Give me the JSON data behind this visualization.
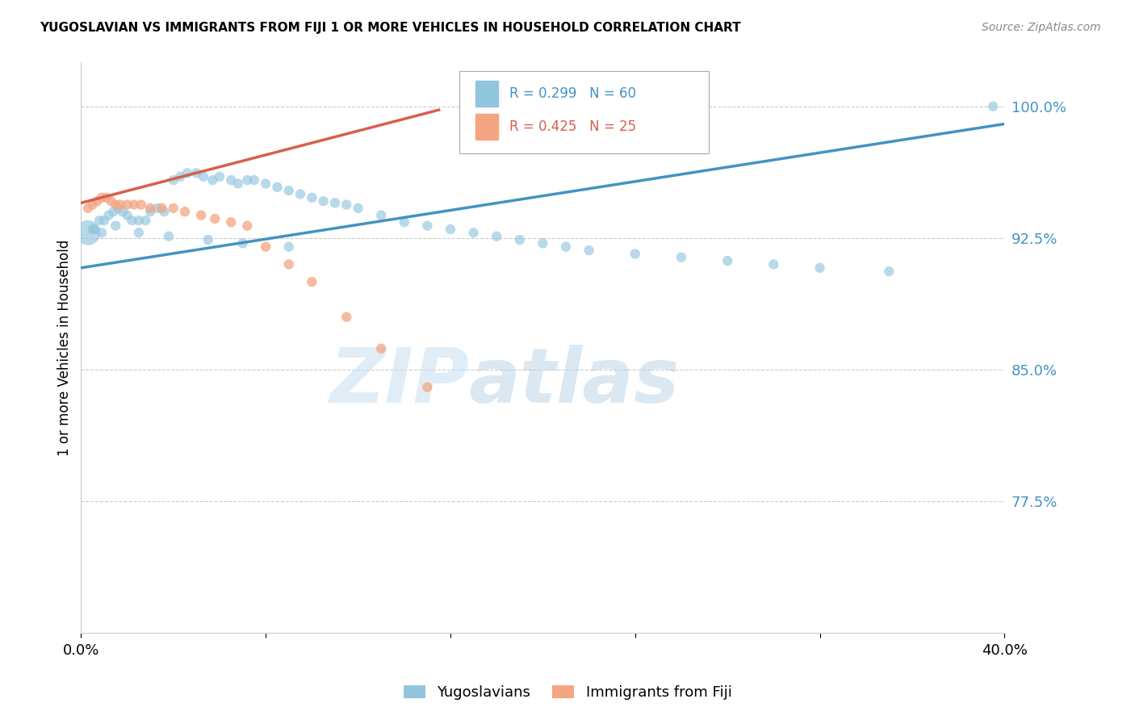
{
  "title": "YUGOSLAVIAN VS IMMIGRANTS FROM FIJI 1 OR MORE VEHICLES IN HOUSEHOLD CORRELATION CHART",
  "source": "Source: ZipAtlas.com",
  "ylabel": "1 or more Vehicles in Household",
  "ytick_labels": [
    "100.0%",
    "92.5%",
    "85.0%",
    "77.5%"
  ],
  "ytick_values": [
    1.0,
    0.925,
    0.85,
    0.775
  ],
  "xlim": [
    0.0,
    0.4
  ],
  "ylim": [
    0.7,
    1.025
  ],
  "blue_R": 0.299,
  "blue_N": 60,
  "pink_R": 0.425,
  "pink_N": 25,
  "blue_color": "#92c5de",
  "blue_line_color": "#4393c3",
  "pink_color": "#f4a582",
  "pink_line_color": "#d6604d",
  "watermark_zip": "ZIP",
  "watermark_atlas": "atlas",
  "blue_x": [
    0.005,
    0.008,
    0.01,
    0.012,
    0.014,
    0.016,
    0.018,
    0.02,
    0.022,
    0.025,
    0.028,
    0.03,
    0.033,
    0.036,
    0.04,
    0.043,
    0.046,
    0.05,
    0.053,
    0.057,
    0.06,
    0.065,
    0.068,
    0.072,
    0.075,
    0.08,
    0.085,
    0.09,
    0.095,
    0.1,
    0.105,
    0.11,
    0.115,
    0.12,
    0.13,
    0.14,
    0.15,
    0.16,
    0.17,
    0.18,
    0.19,
    0.2,
    0.21,
    0.22,
    0.24,
    0.26,
    0.28,
    0.3,
    0.32,
    0.35,
    0.003,
    0.006,
    0.009,
    0.015,
    0.025,
    0.038,
    0.055,
    0.07,
    0.09,
    0.395
  ],
  "blue_y": [
    0.93,
    0.935,
    0.935,
    0.938,
    0.94,
    0.942,
    0.94,
    0.938,
    0.935,
    0.935,
    0.935,
    0.94,
    0.942,
    0.94,
    0.958,
    0.96,
    0.962,
    0.962,
    0.96,
    0.958,
    0.96,
    0.958,
    0.956,
    0.958,
    0.958,
    0.956,
    0.954,
    0.952,
    0.95,
    0.948,
    0.946,
    0.945,
    0.944,
    0.942,
    0.938,
    0.934,
    0.932,
    0.93,
    0.928,
    0.926,
    0.924,
    0.922,
    0.92,
    0.918,
    0.916,
    0.914,
    0.912,
    0.91,
    0.908,
    0.906,
    0.928,
    0.93,
    0.928,
    0.932,
    0.928,
    0.926,
    0.924,
    0.922,
    0.92,
    1.0
  ],
  "blue_sizes": [
    80,
    80,
    80,
    80,
    80,
    80,
    80,
    80,
    80,
    80,
    80,
    80,
    80,
    80,
    80,
    80,
    80,
    80,
    80,
    80,
    80,
    80,
    80,
    80,
    80,
    80,
    80,
    80,
    80,
    80,
    80,
    80,
    80,
    80,
    80,
    80,
    80,
    80,
    80,
    80,
    80,
    80,
    80,
    80,
    80,
    80,
    80,
    80,
    80,
    80,
    500,
    80,
    80,
    80,
    80,
    80,
    80,
    80,
    80,
    80
  ],
  "pink_x": [
    0.003,
    0.005,
    0.007,
    0.009,
    0.011,
    0.013,
    0.015,
    0.017,
    0.02,
    0.023,
    0.026,
    0.03,
    0.035,
    0.04,
    0.045,
    0.052,
    0.058,
    0.065,
    0.072,
    0.08,
    0.09,
    0.1,
    0.115,
    0.13,
    0.15
  ],
  "pink_y": [
    0.942,
    0.944,
    0.946,
    0.948,
    0.948,
    0.946,
    0.944,
    0.944,
    0.944,
    0.944,
    0.944,
    0.942,
    0.942,
    0.942,
    0.94,
    0.938,
    0.936,
    0.934,
    0.932,
    0.92,
    0.91,
    0.9,
    0.88,
    0.862,
    0.84
  ],
  "pink_sizes": [
    80,
    80,
    80,
    80,
    80,
    80,
    80,
    80,
    80,
    80,
    80,
    80,
    80,
    80,
    80,
    80,
    80,
    80,
    80,
    80,
    80,
    80,
    80,
    80,
    80
  ],
  "blue_trendline_x": [
    0.0,
    0.4
  ],
  "blue_trendline_y": [
    0.908,
    0.99
  ],
  "pink_trendline_x": [
    0.0,
    0.155
  ],
  "pink_trendline_y": [
    0.945,
    0.998
  ]
}
